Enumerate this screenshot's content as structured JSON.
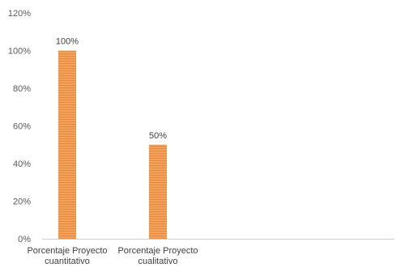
{
  "chart_data": {
    "type": "bar",
    "categories": [
      [
        "Porcentaje Proyecto",
        "cuantitativo"
      ],
      [
        "Porcentaje Proyecto",
        "cualitativo"
      ]
    ],
    "values": [
      100,
      50
    ],
    "data_labels": [
      "100%",
      "50%"
    ],
    "title": "",
    "xlabel": "",
    "ylabel": "",
    "ylim": [
      0,
      120
    ],
    "y_ticks": [
      0,
      20,
      40,
      60,
      80,
      100,
      120
    ],
    "y_tick_labels": [
      "0%",
      "20%",
      "40%",
      "60%",
      "80%",
      "100%",
      "120%"
    ],
    "grid": false,
    "legend": "none",
    "bar_color": "#f4a460",
    "bar_stripe_color": "#e58a3c"
  }
}
